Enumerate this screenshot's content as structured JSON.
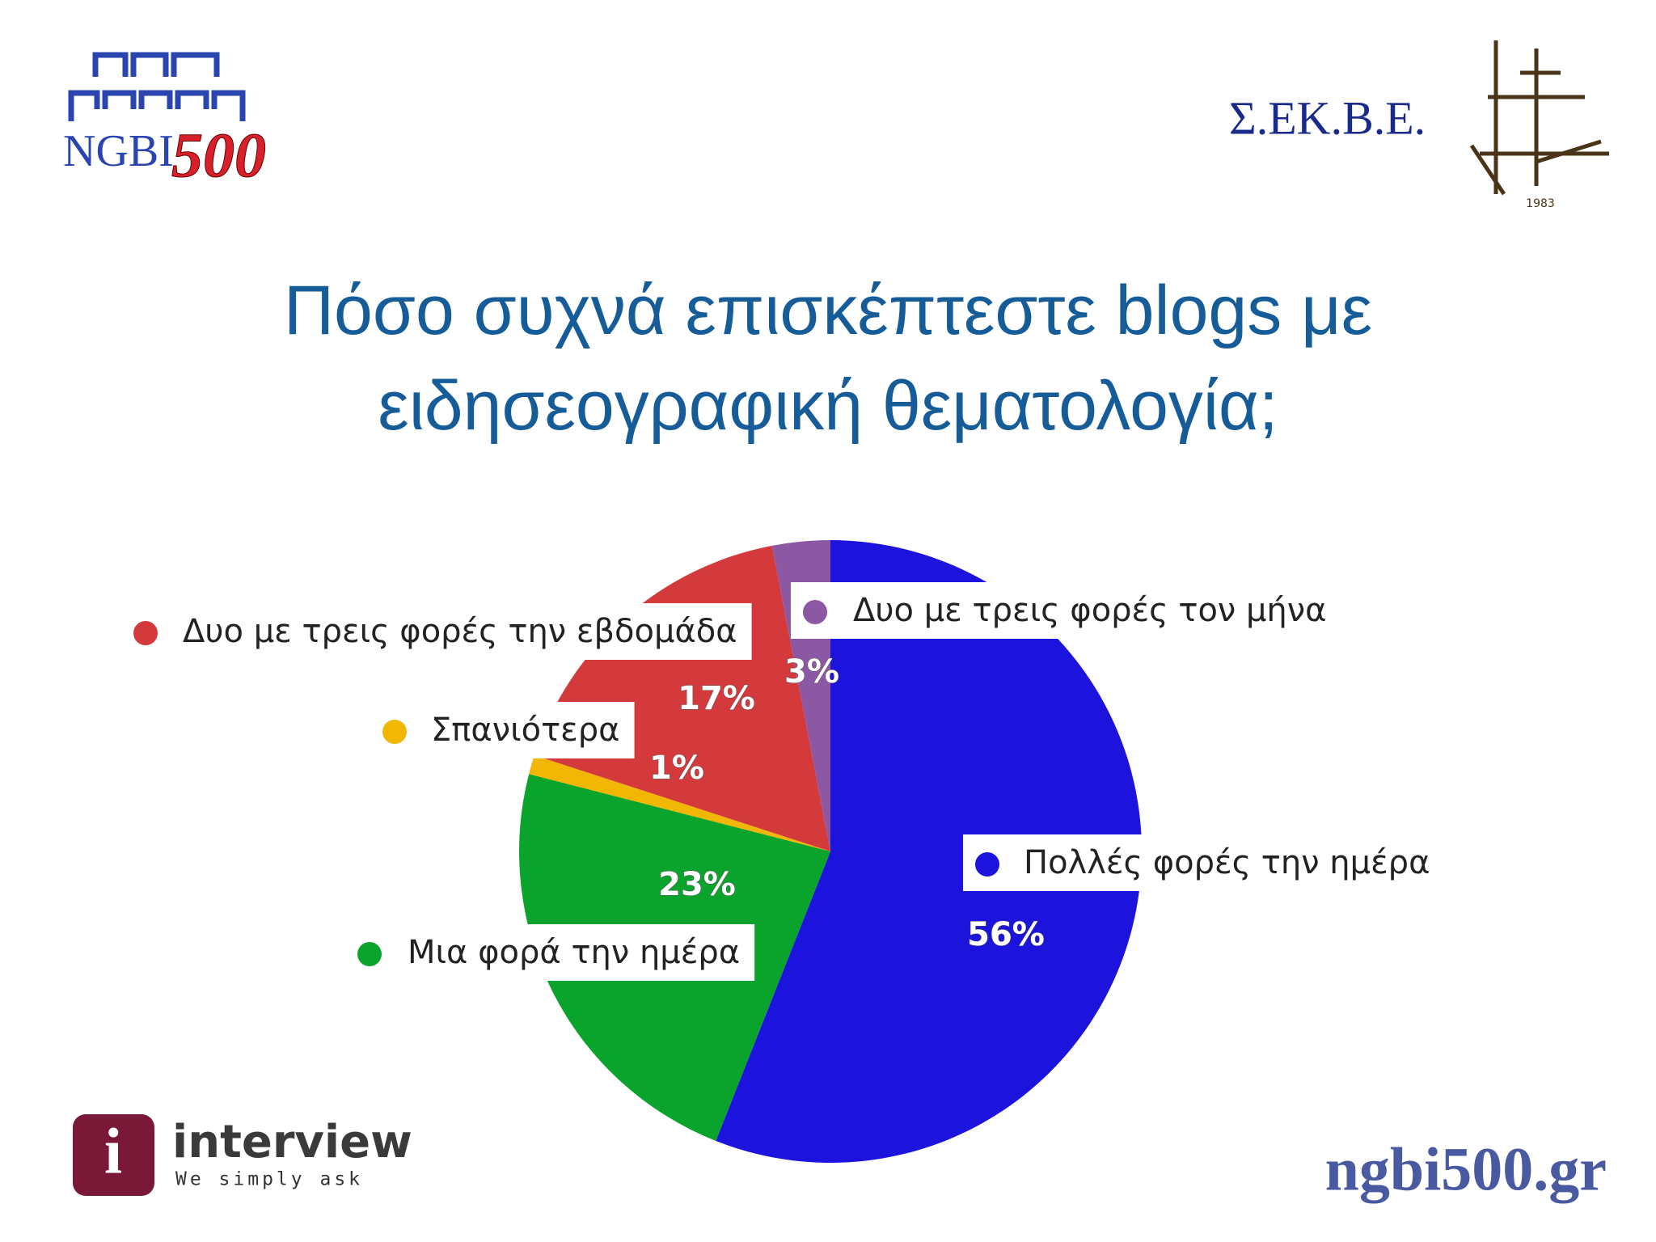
{
  "header": {
    "left_logo": {
      "text": "NGBI",
      "number": "500"
    },
    "right_logo": {
      "text": "Σ.ΕΚ.Β.Ε.",
      "year": "1983"
    }
  },
  "chart_data": {
    "type": "pie",
    "title": "Πόσο συχνά επισκέπτεστε blogs με ειδησεογραφική θεματολογία;",
    "categories": [
      "Πολλές φορές την ημέρα",
      "Μια φορά την ημέρα",
      "Σπανιότερα",
      "Δυο με τρεις φορές την εβδομάδα",
      "Δυο με τρεις φορές τον μήνα"
    ],
    "values": [
      56,
      23,
      1,
      17,
      3
    ],
    "value_labels": [
      "56%",
      "23%",
      "1%",
      "17%",
      "3%"
    ],
    "colors": [
      "#1c14dc",
      "#0aa32c",
      "#f2b705",
      "#d43a3c",
      "#8c58a4"
    ]
  },
  "footer": {
    "brand": {
      "icon": "i",
      "name": "interview",
      "slogan": "We simply ask"
    },
    "site": "ngbi500.gr"
  }
}
